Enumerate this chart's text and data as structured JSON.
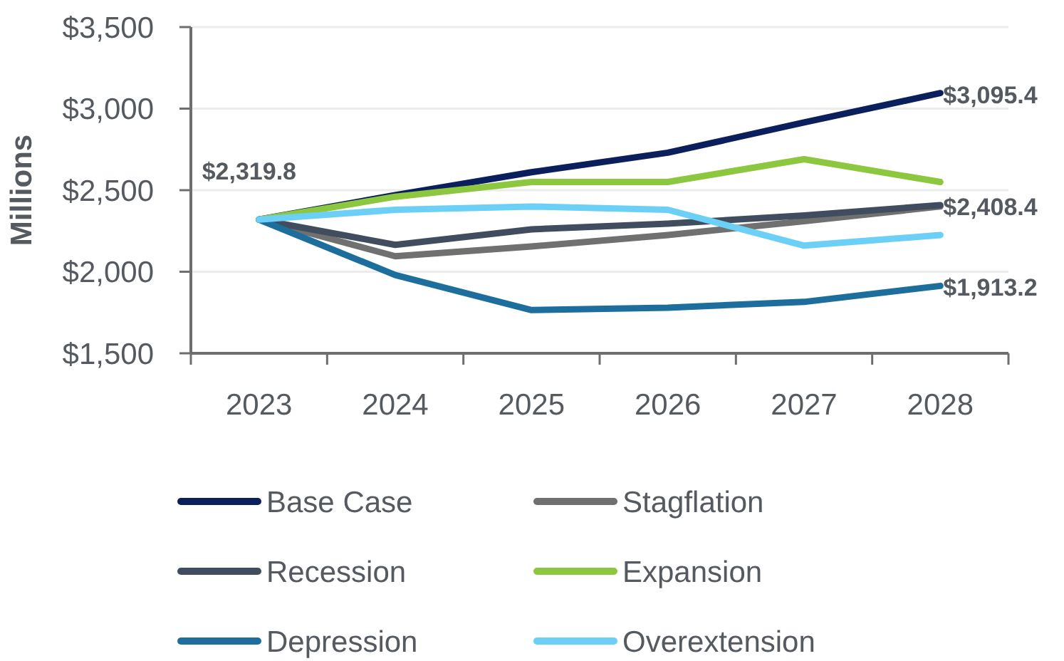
{
  "chart_data": {
    "type": "line",
    "ylabel": "Millions",
    "categories": [
      "2023",
      "2024",
      "2025",
      "2026",
      "2027",
      "2028"
    ],
    "ylim": [
      1500,
      3500
    ],
    "yticks": [
      {
        "value": 1500,
        "label": "$1,500"
      },
      {
        "value": 2000,
        "label": "$2,000"
      },
      {
        "value": 2500,
        "label": "$2,500"
      },
      {
        "value": 3000,
        "label": "$3,000"
      },
      {
        "value": 3500,
        "label": "$3,500"
      }
    ],
    "grid": "y",
    "legend": "bottom",
    "line_style": "solid",
    "marker": "none",
    "series": [
      {
        "name": "Base Case",
        "color": "#0b1f5c",
        "values": [
          2319.8,
          2470,
          2610,
          2730,
          2915,
          3095.4
        ],
        "value_labels": [
          "$2,319.8",
          null,
          null,
          null,
          null,
          "$3,095.4"
        ]
      },
      {
        "name": "Stagflation",
        "color": "#707070",
        "values": [
          2319.8,
          2095,
          2155,
          2225,
          2310,
          2400
        ]
      },
      {
        "name": "Recession",
        "color": "#3f4d5e",
        "values": [
          2319.8,
          2165,
          2260,
          2295,
          2345,
          2408.4
        ],
        "value_labels": [
          null,
          null,
          null,
          null,
          null,
          "$2,408.4"
        ]
      },
      {
        "name": "Expansion",
        "color": "#8dc63f",
        "values": [
          2319.8,
          2460,
          2550,
          2550,
          2690,
          2550
        ]
      },
      {
        "name": "Depression",
        "color": "#1d6e9c",
        "values": [
          2319.8,
          1980,
          1765,
          1780,
          1815,
          1913.2
        ],
        "value_labels": [
          null,
          null,
          null,
          null,
          null,
          "$1,913.2"
        ]
      },
      {
        "name": "Overextension",
        "color": "#6ccff6",
        "values": [
          2319.8,
          2380,
          2400,
          2380,
          2160,
          2225
        ]
      }
    ]
  }
}
